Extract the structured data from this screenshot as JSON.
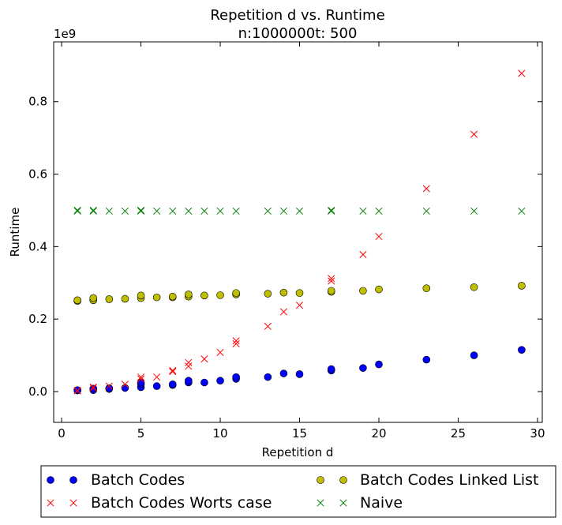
{
  "chart_data": {
    "type": "scatter",
    "title": "Repetition d vs. Runtime",
    "subtitle": "n:1000000t: 500",
    "xlabel": "Repetition d",
    "ylabel": "Runtime",
    "y_scale_label": "1e9",
    "xlim": [
      -0.5,
      30.3
    ],
    "ylim": [
      -0.085,
      0.965
    ],
    "x_ticks": [
      0,
      5,
      10,
      15,
      20,
      25,
      30
    ],
    "y_ticks": [
      0.0,
      0.2,
      0.4,
      0.6,
      0.8
    ],
    "x_tick_labels": [
      "0",
      "5",
      "10",
      "15",
      "20",
      "25",
      "30"
    ],
    "y_tick_labels": [
      "0.0",
      "0.2",
      "0.4",
      "0.6",
      "0.8"
    ],
    "grid": false,
    "legend_position": "bottom",
    "series": [
      {
        "name": "Batch Codes",
        "marker": "circle",
        "color": "#0000ff",
        "points": [
          [
            1,
            0.003
          ],
          [
            1,
            0.004
          ],
          [
            2,
            0.004
          ],
          [
            2,
            0.008
          ],
          [
            3,
            0.007
          ],
          [
            3,
            0.009
          ],
          [
            4,
            0.01
          ],
          [
            5,
            0.012
          ],
          [
            5,
            0.02
          ],
          [
            5,
            0.025
          ],
          [
            6,
            0.015
          ],
          [
            7,
            0.018
          ],
          [
            7,
            0.02
          ],
          [
            8,
            0.025
          ],
          [
            8,
            0.03
          ],
          [
            9,
            0.025
          ],
          [
            10,
            0.03
          ],
          [
            11,
            0.035
          ],
          [
            11,
            0.04
          ],
          [
            13,
            0.04
          ],
          [
            14,
            0.05
          ],
          [
            15,
            0.048
          ],
          [
            17,
            0.058
          ],
          [
            17,
            0.062
          ],
          [
            19,
            0.065
          ],
          [
            20,
            0.075
          ],
          [
            23,
            0.088
          ],
          [
            26,
            0.1
          ],
          [
            29,
            0.115
          ]
        ]
      },
      {
        "name": "Batch Codes Worts case",
        "marker": "x",
        "color": "#ff0000",
        "points": [
          [
            1,
            0.002
          ],
          [
            1,
            0.003
          ],
          [
            2,
            0.01
          ],
          [
            2,
            0.012
          ],
          [
            3,
            0.015
          ],
          [
            4,
            0.02
          ],
          [
            5,
            0.035
          ],
          [
            5,
            0.04
          ],
          [
            6,
            0.04
          ],
          [
            7,
            0.055
          ],
          [
            7,
            0.058
          ],
          [
            8,
            0.07
          ],
          [
            8,
            0.08
          ],
          [
            9,
            0.09
          ],
          [
            10,
            0.108
          ],
          [
            11,
            0.132
          ],
          [
            11,
            0.14
          ],
          [
            13,
            0.18
          ],
          [
            14,
            0.22
          ],
          [
            15,
            0.238
          ],
          [
            17,
            0.305
          ],
          [
            17,
            0.312
          ],
          [
            19,
            0.378
          ],
          [
            20,
            0.428
          ],
          [
            23,
            0.56
          ],
          [
            26,
            0.71
          ],
          [
            29,
            0.878
          ]
        ]
      },
      {
        "name": "Batch Codes Linked List",
        "marker": "circle",
        "color": "#bfbf00",
        "points": [
          [
            1,
            0.25
          ],
          [
            1,
            0.252
          ],
          [
            2,
            0.252
          ],
          [
            2,
            0.258
          ],
          [
            3,
            0.255
          ],
          [
            4,
            0.256
          ],
          [
            5,
            0.258
          ],
          [
            5,
            0.265
          ],
          [
            6,
            0.26
          ],
          [
            7,
            0.26
          ],
          [
            7,
            0.262
          ],
          [
            8,
            0.262
          ],
          [
            8,
            0.268
          ],
          [
            9,
            0.265
          ],
          [
            10,
            0.266
          ],
          [
            11,
            0.268
          ],
          [
            11,
            0.272
          ],
          [
            13,
            0.27
          ],
          [
            14,
            0.273
          ],
          [
            15,
            0.272
          ],
          [
            17,
            0.275
          ],
          [
            17,
            0.278
          ],
          [
            19,
            0.278
          ],
          [
            20,
            0.282
          ],
          [
            23,
            0.285
          ],
          [
            26,
            0.288
          ],
          [
            29,
            0.292
          ]
        ]
      },
      {
        "name": "Naive",
        "marker": "x",
        "color": "#008000",
        "points": [
          [
            1,
            0.498
          ],
          [
            1,
            0.5
          ],
          [
            2,
            0.498
          ],
          [
            2,
            0.5
          ],
          [
            3,
            0.498
          ],
          [
            4,
            0.498
          ],
          [
            5,
            0.498
          ],
          [
            5,
            0.5
          ],
          [
            6,
            0.498
          ],
          [
            7,
            0.498
          ],
          [
            8,
            0.498
          ],
          [
            9,
            0.498
          ],
          [
            10,
            0.498
          ],
          [
            11,
            0.498
          ],
          [
            13,
            0.498
          ],
          [
            14,
            0.498
          ],
          [
            15,
            0.498
          ],
          [
            17,
            0.498
          ],
          [
            17,
            0.5
          ],
          [
            19,
            0.498
          ],
          [
            20,
            0.498
          ],
          [
            23,
            0.498
          ],
          [
            26,
            0.498
          ],
          [
            29,
            0.498
          ]
        ]
      }
    ]
  }
}
